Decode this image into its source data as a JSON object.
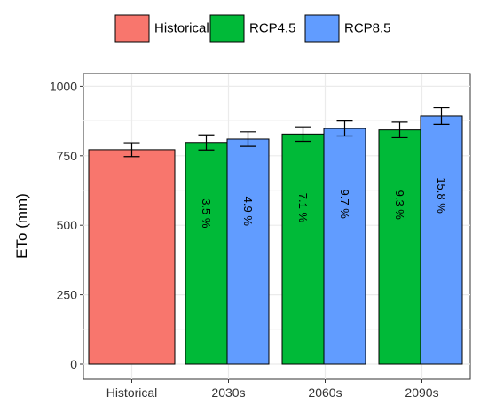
{
  "chart_data": {
    "type": "bar",
    "title": "",
    "xlabel": "",
    "ylabel": "ETo (mm)",
    "ylim": [
      0,
      1050
    ],
    "yticks": [
      0,
      250,
      500,
      750,
      1000
    ],
    "grid": true,
    "legend_position": "top",
    "categories": [
      "Historical",
      "2030s",
      "2060s",
      "2090s"
    ],
    "series": [
      {
        "name": "Historical",
        "color": "#F8766D",
        "values": [
          772,
          null,
          null,
          null
        ],
        "error": [
          25,
          null,
          null,
          null
        ],
        "labels": [
          "",
          "",
          "",
          ""
        ]
      },
      {
        "name": "RCP4.5",
        "color": "#00BA38",
        "values": [
          null,
          798,
          828,
          843
        ],
        "error": [
          null,
          27,
          26,
          28
        ],
        "labels": [
          "",
          "3.5 %",
          "7.1 %",
          "9.3 %"
        ]
      },
      {
        "name": "RCP8.5",
        "color": "#619CFF",
        "values": [
          null,
          810,
          848,
          893
        ],
        "error": [
          null,
          26,
          27,
          30
        ],
        "labels": [
          "",
          "4.9 %",
          "9.7 %",
          "15.8 %"
        ]
      }
    ]
  }
}
